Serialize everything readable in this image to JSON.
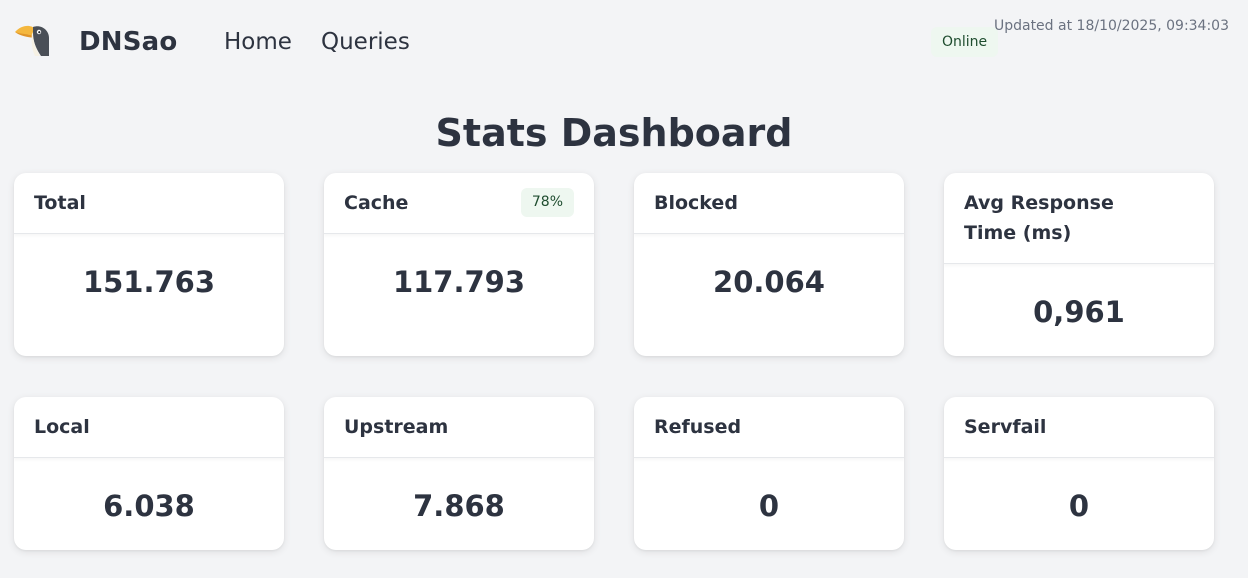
{
  "header": {
    "brand": "DNSao",
    "nav": {
      "home": "Home",
      "queries": "Queries"
    },
    "status": "Online",
    "updated_label": "Updated at",
    "updated_value": "18/10/2025, 09:34:03"
  },
  "page_title": "Stats Dashboard",
  "cards": {
    "total": {
      "title": "Total",
      "value": "151.763"
    },
    "cache": {
      "title": "Cache",
      "badge": "78%",
      "value": "117.793"
    },
    "blocked": {
      "title": "Blocked",
      "value": "20.064"
    },
    "avg_response": {
      "title": "Avg Response Time (ms)",
      "value": "0,961"
    },
    "local": {
      "title": "Local",
      "value": "6.038"
    },
    "upstream": {
      "title": "Upstream",
      "value": "7.868"
    },
    "refused": {
      "title": "Refused",
      "value": "0"
    },
    "servfail": {
      "title": "Servfail",
      "value": "0"
    }
  },
  "colors": {
    "background": "#f3f4f6",
    "text": "#2d3340",
    "badge_bg": "#eef7f0",
    "muted": "#6b7280"
  },
  "icons": {
    "logo": "toucan-logo-icon"
  }
}
